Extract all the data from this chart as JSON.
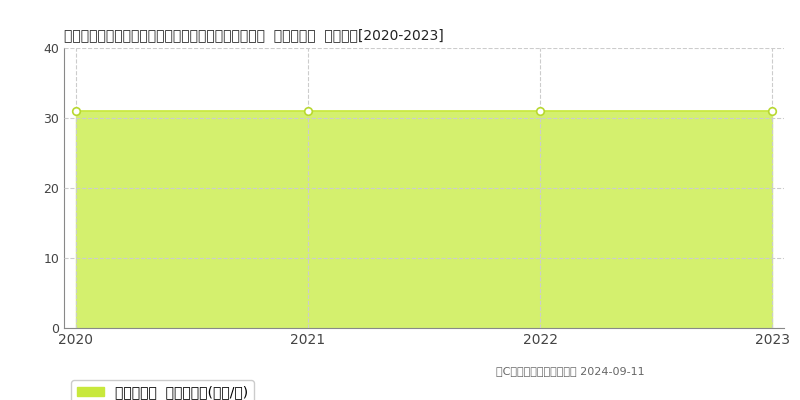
{
  "title": "愛知県知多郡阿久比町大字白沢字上カナクソ５番１５  基準地価格  地価推移[2020-2023]",
  "years": [
    2020,
    2021,
    2022,
    2023
  ],
  "values": [
    31.0,
    31.0,
    31.0,
    31.0
  ],
  "ylim": [
    0,
    40
  ],
  "yticks": [
    0,
    10,
    20,
    30,
    40
  ],
  "line_color": "#c8e83c",
  "fill_color": "#d4f06e",
  "marker_color": "#ffffff",
  "marker_edge_color": "#b8d830",
  "grid_color": "#cccccc",
  "background_color": "#ffffff",
  "legend_label": "基準地価格  平均坪単価(万円/坪)",
  "copyright_text": "（C）土地価格ドットコム 2024-09-11",
  "title_fontsize": 10.5,
  "axis_fontsize": 9,
  "legend_fontsize": 9
}
